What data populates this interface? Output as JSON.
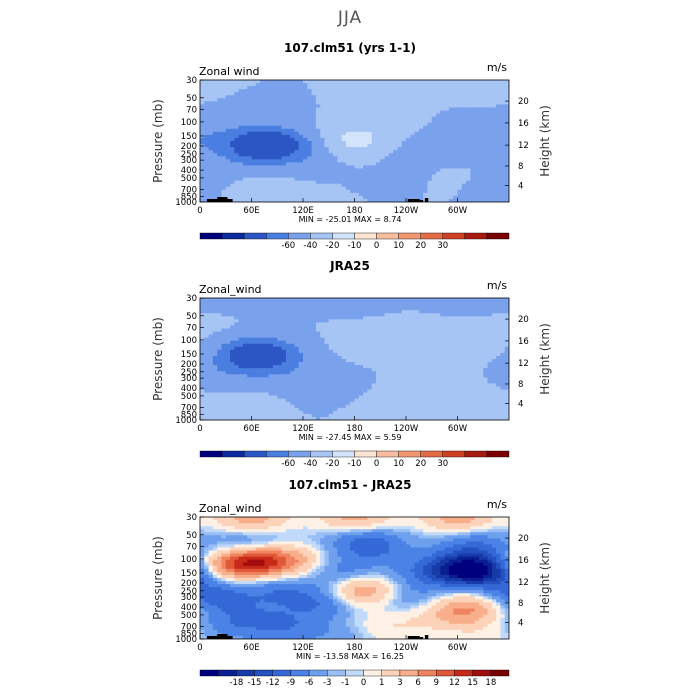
{
  "main_title": "JJA",
  "chart_data": [
    {
      "type": "heatmap",
      "title": "107.clm51 (yrs 1-1)",
      "variable": "Zonal wind",
      "units": "m/s",
      "ylabel": "Pressure (mb)",
      "y2label": "Height (km)",
      "pressure_ticks": [
        "30",
        "50",
        "70",
        "100",
        "150",
        "200",
        "250",
        "300",
        "400",
        "500",
        "700",
        "850",
        "1000"
      ],
      "height_ticks": [
        "20",
        "16",
        "12",
        "8",
        "4"
      ],
      "lon_ticks": [
        "0",
        "60E",
        "120E",
        "180",
        "120W",
        "60W"
      ],
      "stats": "MIN = -25.01   MAX =   8.74",
      "colorbar_labels": [
        "-60",
        "-40",
        "-20",
        "-10",
        "0",
        "10",
        "20",
        "30"
      ],
      "palette": [
        "#00007f",
        "#0c2a9e",
        "#2c56c4",
        "#4a7ee0",
        "#7aa2ec",
        "#a6c4f4",
        "#d2e4fb",
        "#fde4d2",
        "#f8bda0",
        "#f09772",
        "#e26b45",
        "#cf3f21",
        "#a81a10",
        "#7a0000"
      ],
      "blobs": [
        {
          "lon": 0,
          "p": 30,
          "value": 2
        },
        {
          "lon": 180,
          "p": 50,
          "value": 1
        },
        {
          "lon": 330,
          "p": 30,
          "value": 2
        },
        {
          "lon": 80,
          "p": 70,
          "value": -3
        },
        {
          "lon": 30,
          "p": 100,
          "value": -1
        },
        {
          "lon": 200,
          "p": 100,
          "value": 3
        },
        {
          "lon": 30,
          "p": 150,
          "value": -4
        },
        {
          "lon": 75,
          "p": 185,
          "value": -22
        },
        {
          "lon": 95,
          "p": 200,
          "value": -12
        },
        {
          "lon": 55,
          "p": 250,
          "value": -8
        },
        {
          "lon": 180,
          "p": 150,
          "value": 6
        },
        {
          "lon": 185,
          "p": 200,
          "value": 8
        },
        {
          "lon": 240,
          "p": 250,
          "value": -4
        },
        {
          "lon": 300,
          "p": 200,
          "value": -3
        },
        {
          "lon": 340,
          "p": 170,
          "value": -7
        },
        {
          "lon": 130,
          "p": 300,
          "value": -4
        },
        {
          "lon": 10,
          "p": 500,
          "value": -3
        },
        {
          "lon": 60,
          "p": 700,
          "value": 3
        },
        {
          "lon": 90,
          "p": 850,
          "value": 2
        },
        {
          "lon": 220,
          "p": 600,
          "value": -3
        },
        {
          "lon": 280,
          "p": 700,
          "value": 1
        },
        {
          "lon": 340,
          "p": 850,
          "value": -2
        },
        {
          "lon": 300,
          "p": 400,
          "value": 1
        },
        {
          "lon": 170,
          "p": 850,
          "value": 1
        }
      ],
      "topography": true
    },
    {
      "type": "heatmap",
      "title": "JRA25",
      "variable": "Zonal_wind",
      "units": "m/s",
      "ylabel": "Pressure (mb)",
      "y2label": "Height (km)",
      "pressure_ticks": [
        "30",
        "50",
        "70",
        "100",
        "150",
        "200",
        "250",
        "300",
        "400",
        "500",
        "700",
        "850",
        "1000"
      ],
      "height_ticks": [
        "20",
        "16",
        "12",
        "8",
        "4"
      ],
      "lon_ticks": [
        "0",
        "60E",
        "120E",
        "180",
        "120W",
        "60W"
      ],
      "stats": "MIN = -27.45   MAX =   5.59",
      "colorbar_labels": [
        "-60",
        "-40",
        "-20",
        "-10",
        "0",
        "10",
        "20",
        "30"
      ],
      "palette": [
        "#00007f",
        "#0c2a9e",
        "#2c56c4",
        "#4a7ee0",
        "#7aa2ec",
        "#a6c4f4",
        "#d2e4fb",
        "#fde4d2",
        "#f8bda0",
        "#f09772",
        "#e26b45",
        "#cf3f21",
        "#a81a10",
        "#7a0000"
      ],
      "blobs": [
        {
          "lon": 180,
          "p": 30,
          "value": -3
        },
        {
          "lon": 60,
          "p": 30,
          "value": -3
        },
        {
          "lon": 300,
          "p": 30,
          "value": -2
        },
        {
          "lon": 20,
          "p": 70,
          "value": 1
        },
        {
          "lon": 200,
          "p": 100,
          "value": 4
        },
        {
          "lon": 260,
          "p": 90,
          "value": 4
        },
        {
          "lon": 320,
          "p": 120,
          "value": 3
        },
        {
          "lon": 60,
          "p": 150,
          "value": -22
        },
        {
          "lon": 80,
          "p": 160,
          "value": -14
        },
        {
          "lon": 30,
          "p": 250,
          "value": -6
        },
        {
          "lon": 110,
          "p": 300,
          "value": -5
        },
        {
          "lon": 150,
          "p": 400,
          "value": -3
        },
        {
          "lon": 10,
          "p": 150,
          "value": 1
        },
        {
          "lon": 60,
          "p": 600,
          "value": 2
        },
        {
          "lon": 40,
          "p": 850,
          "value": 2
        },
        {
          "lon": 210,
          "p": 600,
          "value": 2
        },
        {
          "lon": 280,
          "p": 300,
          "value": 3
        },
        {
          "lon": 330,
          "p": 600,
          "value": 2
        },
        {
          "lon": 300,
          "p": 900,
          "value": 1
        }
      ],
      "topography": false
    },
    {
      "type": "heatmap",
      "title": "107.clm51 - JRA25",
      "variable": "Zonal_wind",
      "units": "m/s",
      "ylabel": "Pressure (mb)",
      "y2label": "Height (km)",
      "pressure_ticks": [
        "30",
        "50",
        "70",
        "100",
        "150",
        "200",
        "250",
        "300",
        "400",
        "500",
        "700",
        "850",
        "1000"
      ],
      "height_ticks": [
        "20",
        "16",
        "12",
        "8",
        "4"
      ],
      "lon_ticks": [
        "0",
        "60E",
        "120E",
        "180",
        "120W",
        "60W"
      ],
      "stats": "MIN = -13.58   MAX =  16.25",
      "colorbar_labels": [
        "-18",
        "-15",
        "-12",
        "-9",
        "-6",
        "-3",
        "-1",
        "0",
        "1",
        "3",
        "6",
        "9",
        "12",
        "15",
        "18"
      ],
      "palette": [
        "#00007f",
        "#0a1f90",
        "#163aa8",
        "#2450c0",
        "#3468d6",
        "#4a82e6",
        "#6ea0ee",
        "#98bef4",
        "#c2dafa",
        "#fdf0e4",
        "#fcd2b8",
        "#f8ae8a",
        "#f08460",
        "#e05838",
        "#c82a1a",
        "#a30c0c",
        "#7a0000"
      ],
      "blobs": [
        {
          "lon": 60,
          "p": 30,
          "value": 8
        },
        {
          "lon": 180,
          "p": 32,
          "value": 8
        },
        {
          "lon": 300,
          "p": 30,
          "value": 8
        },
        {
          "lon": 180,
          "p": 50,
          "value": -3
        },
        {
          "lon": 60,
          "p": 70,
          "value": -7
        },
        {
          "lon": 200,
          "p": 70,
          "value": -7
        },
        {
          "lon": 320,
          "p": 70,
          "value": -6
        },
        {
          "lon": 70,
          "p": 100,
          "value": 14
        },
        {
          "lon": 40,
          "p": 120,
          "value": 10
        },
        {
          "lon": 110,
          "p": 110,
          "value": 5
        },
        {
          "lon": 165,
          "p": 150,
          "value": -5
        },
        {
          "lon": 305,
          "p": 130,
          "value": -13
        },
        {
          "lon": 330,
          "p": 150,
          "value": -11
        },
        {
          "lon": 260,
          "p": 150,
          "value": -4
        },
        {
          "lon": 190,
          "p": 250,
          "value": 10
        },
        {
          "lon": 15,
          "p": 300,
          "value": -8
        },
        {
          "lon": 90,
          "p": 250,
          "value": -5
        },
        {
          "lon": 140,
          "p": 350,
          "value": -6
        },
        {
          "lon": 240,
          "p": 300,
          "value": -4
        },
        {
          "lon": 320,
          "p": 400,
          "value": 7
        },
        {
          "lon": 290,
          "p": 500,
          "value": 5
        },
        {
          "lon": 60,
          "p": 500,
          "value": -3
        },
        {
          "lon": 100,
          "p": 700,
          "value": -5
        },
        {
          "lon": 30,
          "p": 700,
          "value": -4
        },
        {
          "lon": 220,
          "p": 700,
          "value": 3
        },
        {
          "lon": 340,
          "p": 850,
          "value": 2
        },
        {
          "lon": 160,
          "p": 900,
          "value": -2
        }
      ],
      "topography": true
    }
  ]
}
